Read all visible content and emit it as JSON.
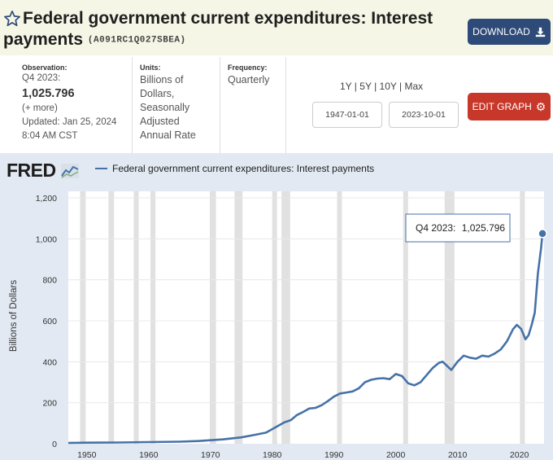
{
  "header": {
    "title_line1": "Federal government current expenditures: Interest",
    "title_line2": "payments",
    "series_id": "(A091RC1Q027SBEA)",
    "download_label": "DOWNLOAD"
  },
  "meta": {
    "observation_label": "Observation:",
    "observation_period": "Q4 2023:",
    "observation_value": "1,025.796",
    "more_label": "(+ more)",
    "updated_label": "Updated:",
    "updated_date": "Jan 25, 2024",
    "updated_time": "8:04 AM CST",
    "units_label": "Units:",
    "units_value": [
      "Billions of",
      "Dollars,",
      "Seasonally",
      "Adjusted",
      "Annual Rate"
    ],
    "frequency_label": "Frequency:",
    "frequency_value": "Quarterly"
  },
  "ranges": [
    "1Y",
    "5Y",
    "10Y",
    "Max"
  ],
  "date_start": "1947-01-01",
  "date_end": "2023-10-01",
  "edit_graph_label": "EDIT GRAPH",
  "logo": "FRED",
  "colors": {
    "series": "#4572a7",
    "edit_button": "#c7372a",
    "download_button": "#2e4a78"
  },
  "chart_data": {
    "type": "line",
    "title": "Federal government current expenditures: Interest payments",
    "ylabel": "Billions of Dollars",
    "xlabel": "",
    "ylim": [
      0,
      1200
    ],
    "xlim": [
      1947,
      2024
    ],
    "yticks": [
      0,
      200,
      400,
      600,
      800,
      1000,
      1200
    ],
    "ytick_labels": [
      "0",
      "200",
      "400",
      "600",
      "800",
      "1,000",
      "1,200"
    ],
    "xticks": [
      1950,
      1960,
      1970,
      1980,
      1990,
      2000,
      2010,
      2020
    ],
    "tooltip": {
      "label": "Q4 2023:",
      "value": "1,025.796"
    },
    "recessions": [
      [
        1948.9,
        1949.8
      ],
      [
        1953.5,
        1954.4
      ],
      [
        1957.6,
        1958.3
      ],
      [
        1960.3,
        1961.1
      ],
      [
        1969.9,
        1970.9
      ],
      [
        1973.9,
        1975.2
      ],
      [
        1980.0,
        1980.5
      ],
      [
        1981.5,
        1982.9
      ],
      [
        1990.5,
        1991.2
      ],
      [
        2001.2,
        2001.9
      ],
      [
        2007.9,
        2009.5
      ],
      [
        2020.1,
        2020.4
      ]
    ],
    "series": [
      {
        "name": "Federal government current expenditures: Interest payments",
        "x": [
          1947,
          1950,
          1955,
          1960,
          1965,
          1968,
          1970,
          1972,
          1975,
          1977,
          1979,
          1980,
          1981,
          1982,
          1983,
          1984,
          1985,
          1986,
          1987,
          1988,
          1989,
          1990,
          1991,
          1992,
          1993,
          1994,
          1995,
          1996,
          1997,
          1998,
          1999,
          2000,
          2001,
          2002,
          2003,
          2004,
          2005,
          2006,
          2007,
          2007.6,
          2008.3,
          2009,
          2010,
          2011,
          2012,
          2013,
          2014,
          2015,
          2016,
          2017,
          2018,
          2019,
          2019.6,
          2020.3,
          2021,
          2021.5,
          2022,
          2022.5,
          2023,
          2023.5,
          2023.75
        ],
        "values": [
          4,
          5,
          6,
          8,
          10,
          13,
          17,
          21,
          31,
          42,
          54,
          71,
          88,
          105,
          115,
          140,
          155,
          172,
          175,
          188,
          208,
          230,
          245,
          250,
          255,
          270,
          300,
          312,
          318,
          320,
          315,
          340,
          330,
          295,
          285,
          300,
          335,
          370,
          395,
          400,
          380,
          360,
          400,
          430,
          420,
          415,
          430,
          425,
          440,
          460,
          500,
          560,
          580,
          560,
          510,
          530,
          580,
          640,
          830,
          950,
          1025.796
        ]
      }
    ]
  }
}
